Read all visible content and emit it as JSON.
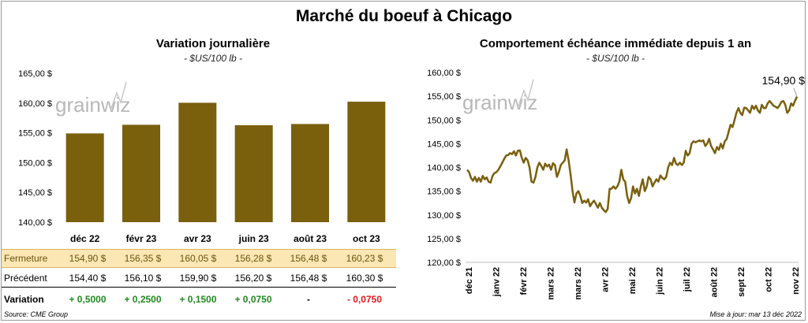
{
  "title": "Marché du boeuf à Chicago",
  "colors": {
    "bar": "#7a5f0d",
    "line": "#7a5f0d",
    "positive": "#1f8a1f",
    "negative": "#e01b1b",
    "highlight_row": "#fbe7b3"
  },
  "watermark": "grainwiz",
  "chart_data": [
    {
      "type": "bar",
      "title": "Variation journalière",
      "subtitle": "- $US/100 lb -",
      "categories": [
        "déc 22",
        "févr 23",
        "avr 23",
        "juin 23",
        "août 23",
        "oct 23"
      ],
      "values": [
        154.9,
        156.35,
        160.05,
        156.28,
        156.48,
        160.23
      ],
      "ylim": [
        140,
        165
      ],
      "yticks": [
        140,
        145,
        150,
        155,
        160,
        165
      ],
      "ytick_labels": [
        "140,00 $",
        "145,00 $",
        "150,00 $",
        "155,00 $",
        "160,00 $",
        "165,00 $"
      ],
      "grid": false
    },
    {
      "type": "line",
      "title": "Comportement échéance immédiate depuis 1 an",
      "subtitle": "- $US/100 lb -",
      "x_labels": [
        "déc 21",
        "janv 22",
        "févr 22",
        "mars 22",
        "mars 22",
        "avr 22",
        "mai 22",
        "juin 22",
        "juil 22",
        "août 22",
        "sept 22",
        "oct 22",
        "nov 22"
      ],
      "ylim": [
        120,
        160
      ],
      "yticks": [
        120,
        125,
        130,
        135,
        140,
        145,
        150,
        155,
        160
      ],
      "ytick_labels": [
        "120,00 $",
        "125,00 $",
        "130,00 $",
        "135,00 $",
        "140,00 $",
        "145,00 $",
        "150,00 $",
        "155,00 $",
        "160,00 $"
      ],
      "last_value_label": "154,90 $",
      "values": [
        139.5,
        139.0,
        137.8,
        137.2,
        138.0,
        137.0,
        137.8,
        137.0,
        138.2,
        137.5,
        137.9,
        137.0,
        136.8,
        138.2,
        138.8,
        139.0,
        139.5,
        140.2,
        141.0,
        141.8,
        142.5,
        142.6,
        143.0,
        142.8,
        143.4,
        142.5,
        143.5,
        143.6,
        142.0,
        141.0,
        142.0,
        141.5,
        140.0,
        137.0,
        136.8,
        138.0,
        140.0,
        141.0,
        140.3,
        139.5,
        140.8,
        140.2,
        140.6,
        139.5,
        140.9,
        140.5,
        138.0,
        139.0,
        140.5,
        141.0,
        141.5,
        143.8,
        141.5,
        138.5,
        135.0,
        132.6,
        134.5,
        135.0,
        134.0,
        132.5,
        133.0,
        132.6,
        133.3,
        131.8,
        132.5,
        133.0,
        132.3,
        131.5,
        132.5,
        131.5,
        131.0,
        130.6,
        131.2,
        135.5,
        135.5,
        136.0,
        135.5,
        136.0,
        137.0,
        139.5,
        137.5,
        137.0,
        134.0,
        132.5,
        133.5,
        136.0,
        134.5,
        135.5,
        134.0,
        136.0,
        137.5,
        135.0,
        136.0,
        138.0,
        137.5,
        136.0,
        136.8,
        137.5,
        137.0,
        138.3,
        137.8,
        137.5,
        138.0,
        140.0,
        141.0,
        140.5,
        142.0,
        140.8,
        140.5,
        141.0,
        140.5,
        141.0,
        143.5,
        142.5,
        143.0,
        145.0,
        145.5,
        145.3,
        145.5,
        145.7,
        145.5,
        145.7,
        144.5,
        145.0,
        146.0,
        144.5,
        143.8,
        143.0,
        144.3,
        143.7,
        145.0,
        144.0,
        145.5,
        146.0,
        147.5,
        149.0,
        148.5,
        150.0,
        151.5,
        152.5,
        151.5,
        151.0,
        152.6,
        152.5,
        152.0,
        151.5,
        153.0,
        152.3,
        153.0,
        152.0,
        151.5,
        153.2,
        152.5,
        152.5,
        153.5,
        154.0,
        153.5,
        153.0,
        152.8,
        152.5,
        153.0,
        153.8,
        154.0,
        153.2,
        151.5,
        152.0,
        153.5,
        153.0,
        154.0,
        154.9
      ]
    }
  ],
  "table": {
    "rows": [
      {
        "label": "Fermeture",
        "cells": [
          "154,90  $",
          "156,35  $",
          "160,05  $",
          "156,28  $",
          "156,48  $",
          "160,23  $"
        ]
      },
      {
        "label": "Précédent",
        "cells": [
          "154,40  $",
          "156,10  $",
          "159,90  $",
          "156,20  $",
          "156,48  $",
          "160,30  $"
        ]
      },
      {
        "label": "Variation",
        "cells": [
          "+ 0,5000",
          "+ 0,2500",
          "+ 0,1500",
          "+ 0,0750",
          "-",
          "- 0,0750"
        ],
        "signs": [
          "pos",
          "pos",
          "pos",
          "pos",
          "",
          "neg"
        ]
      }
    ]
  },
  "footer": {
    "source": "Source: CME Group",
    "updated": "Mise à jour: mar 13 déc 2022"
  }
}
